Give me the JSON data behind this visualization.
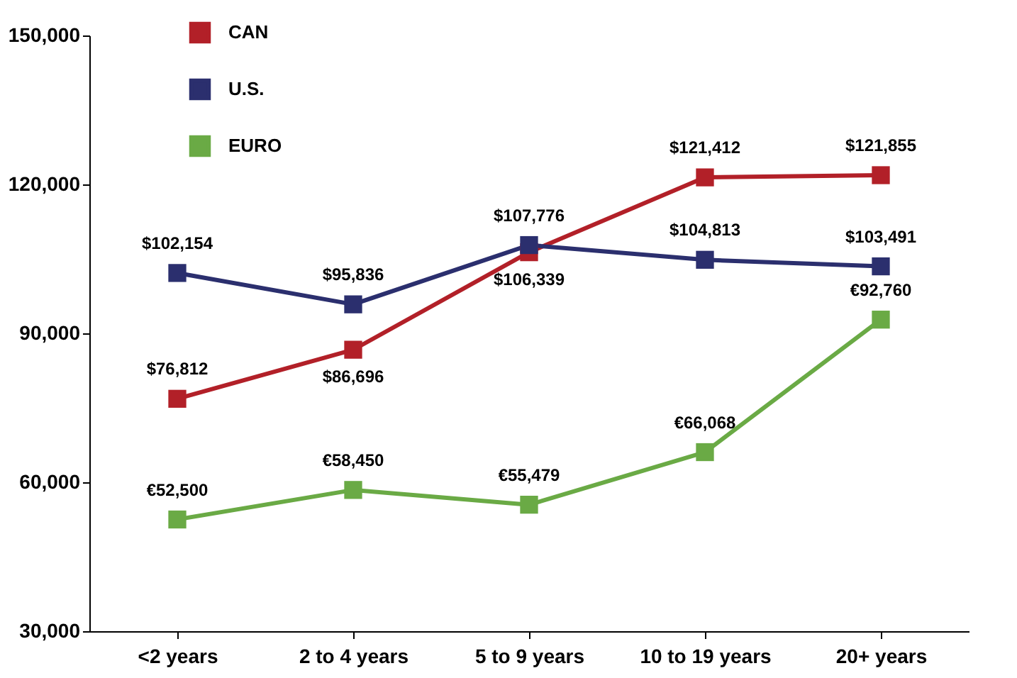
{
  "chart_data": {
    "type": "line",
    "categories": [
      "<2 years",
      "2 to 4 years",
      "5 to 9 years",
      "10 to 19 years",
      "20+ years"
    ],
    "series": [
      {
        "name": "CAN",
        "color": "#b22028",
        "values": [
          76812,
          86696,
          106339,
          121412,
          121855
        ],
        "value_labels": [
          "$76,812",
          "$86,696",
          "$106,339",
          "$121,412",
          "$121,855"
        ]
      },
      {
        "name": "U.S.",
        "color": "#2b2f6e",
        "values": [
          102154,
          95836,
          107776,
          104813,
          103491
        ],
        "value_labels": [
          "$102,154",
          "$95,836",
          "$107,776",
          "$104,813",
          "$103,491"
        ]
      },
      {
        "name": "EURO",
        "color": "#6aaa45",
        "values": [
          52500,
          58450,
          55479,
          66068,
          92760
        ],
        "value_labels": [
          "€52,500",
          "€58,450",
          "€55,479",
          "€66,068",
          "€92,760"
        ]
      }
    ],
    "ylim": [
      30000,
      150000
    ],
    "yticks": [
      {
        "value": 30000,
        "label": "30,000"
      },
      {
        "value": 60000,
        "label": "60,000"
      },
      {
        "value": 90000,
        "label": "90,000"
      },
      {
        "value": 120000,
        "label": "120,000"
      },
      {
        "value": 150000,
        "label": "150,000"
      }
    ],
    "grid": false,
    "legend": "top left",
    "marker": "square",
    "line_style": "solid"
  }
}
